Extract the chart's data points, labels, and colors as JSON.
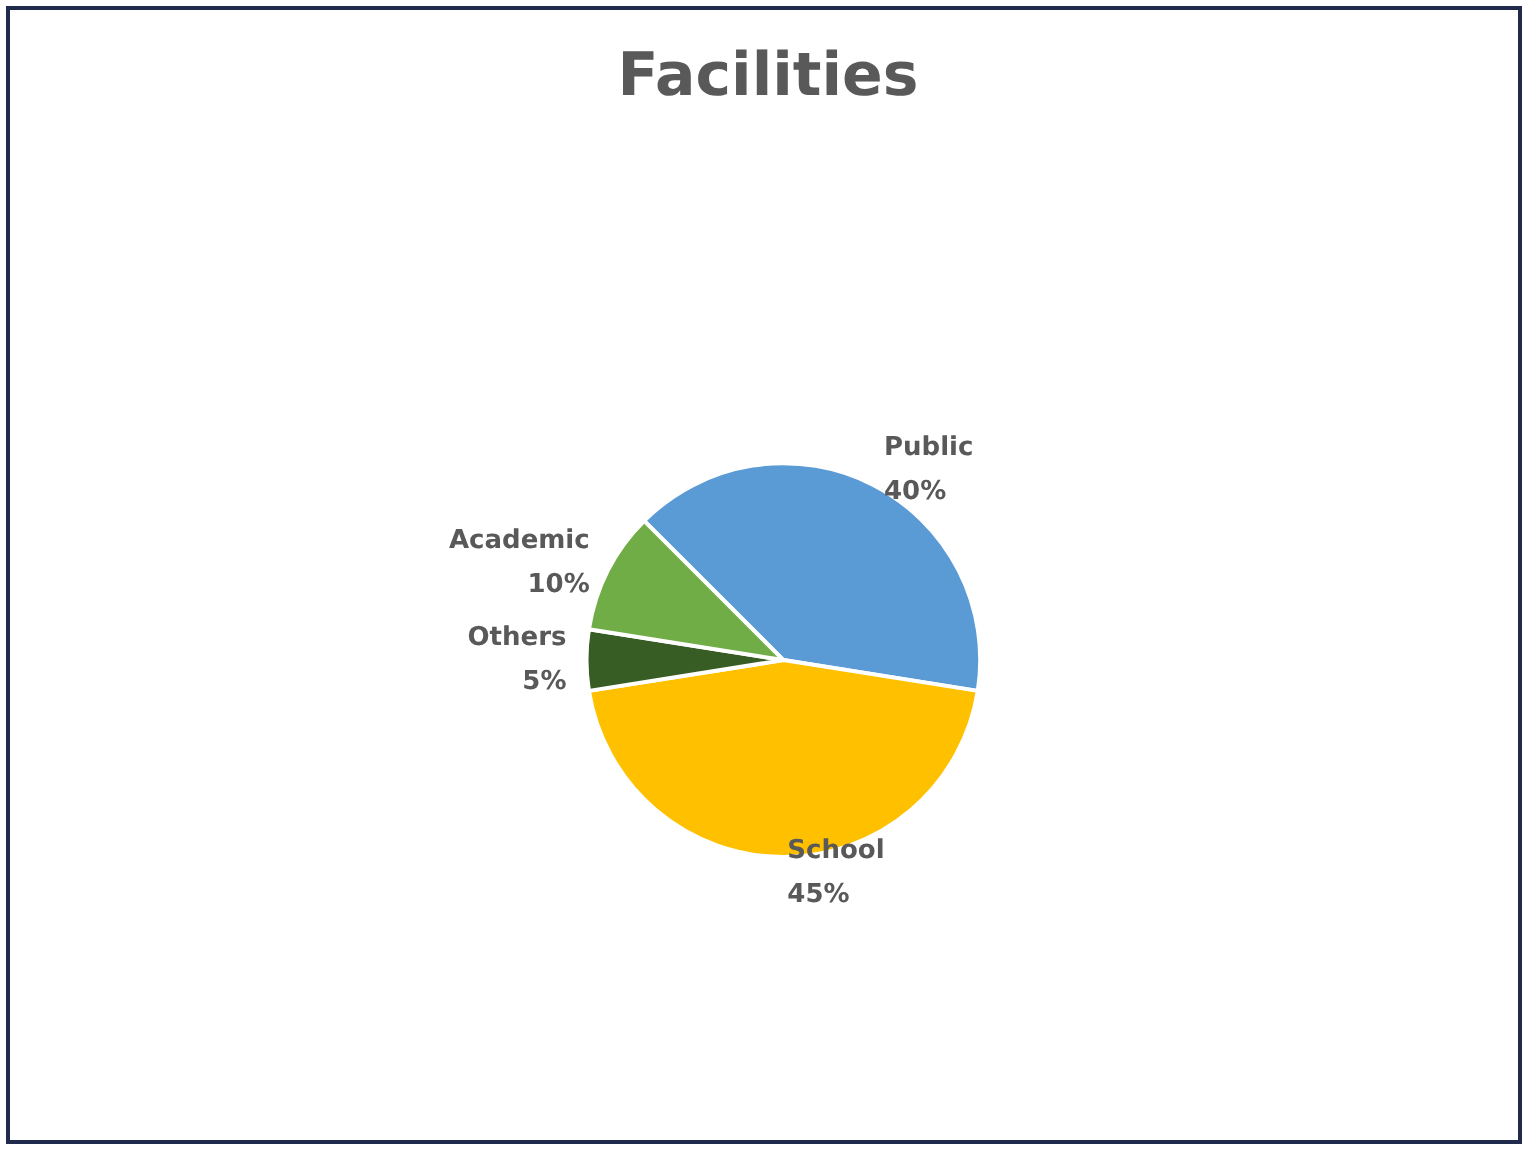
{
  "chart_data": {
    "type": "pie",
    "title": "Facilities",
    "categories": [
      "Public",
      "School",
      "Others",
      "Academic"
    ],
    "values": [
      40,
      45,
      5,
      10
    ],
    "value_labels": [
      "40%",
      "45%",
      "5%",
      "10%"
    ],
    "colors": [
      "#5b9bd5",
      "#ffc000",
      "#385d24",
      "#70ad47"
    ],
    "legend": false
  }
}
